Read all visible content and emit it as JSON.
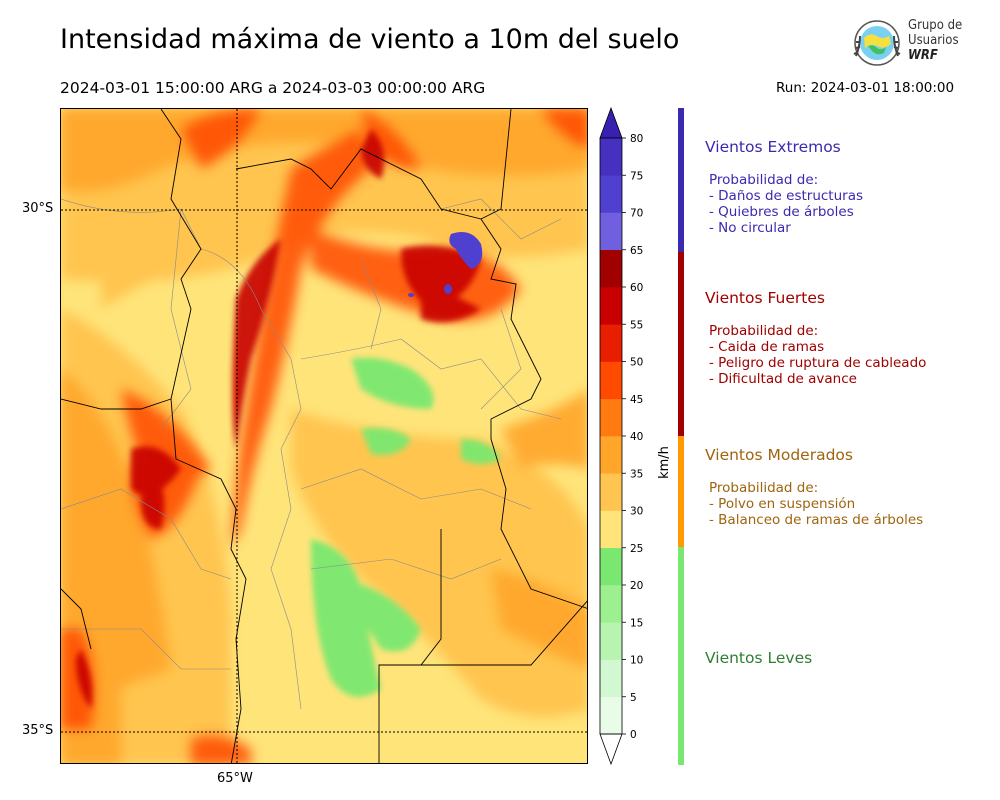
{
  "header": {
    "title": "Intensidad máxima de viento a 10m del suelo",
    "period": "2024-03-01 15:00:00 ARG  a  2024-03-03 00:00:00 ARG",
    "run": "Run: 2024-03-01 18:00:00"
  },
  "logo": {
    "line1": "Grupo de",
    "line2": "Usuarios",
    "line3": "WRF"
  },
  "map": {
    "lat_labels": [
      "30°S",
      "35°S"
    ],
    "lon_labels": [
      "65°W"
    ]
  },
  "colorbar": {
    "unit": "km/h",
    "ticks": [
      "0",
      "5",
      "10",
      "15",
      "20",
      "25",
      "30",
      "35",
      "40",
      "45",
      "50",
      "55",
      "60",
      "65",
      "70",
      "75",
      "80"
    ],
    "colors": [
      "#e8fce8",
      "#d2f8d2",
      "#b8f4b0",
      "#9cf090",
      "#7ae870",
      "#ffe47a",
      "#ffc550",
      "#ffa52a",
      "#ff7a10",
      "#ff4a00",
      "#e81e00",
      "#c80000",
      "#a00000",
      "#7060e0",
      "#5040d0",
      "#4630c0"
    ],
    "extend_max_color": "#3a20b0",
    "extend_min_color": "#ffffff"
  },
  "categories": [
    {
      "title": "Vientos Extremos",
      "color": "#3a2ab0",
      "lines": [
        "Probabilidad de:",
        "- Daños de estructuras",
        "- Quiebres de árboles",
        "- No circular"
      ]
    },
    {
      "title": "Vientos Fuertes",
      "color": "#a00000",
      "lines": [
        "Probabilidad de:",
        "- Caida de ramas",
        "- Peligro de ruptura de cableado",
        "- Dificultad de avance"
      ]
    },
    {
      "title": "Vientos Moderados",
      "color": "#a06410",
      "lines": [
        "Probabilidad de:",
        "- Polvo en suspensión",
        "- Balanceo de ramas de árboles"
      ]
    },
    {
      "title": "Vientos Leves",
      "color": "#2e7d32",
      "lines": []
    }
  ]
}
